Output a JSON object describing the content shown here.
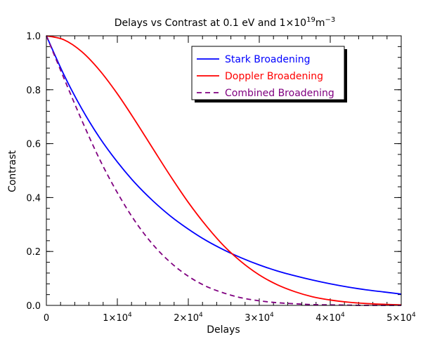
{
  "chart_data": {
    "type": "line",
    "title": {
      "prefix": "Delays vs Contrast at 0.1 eV and 1",
      "times": "×",
      "base": "10",
      "exp1": "19",
      "unit": "m",
      "exp2": "−3"
    },
    "xlabel": "Delays",
    "ylabel": "Contrast",
    "xlim": [
      0,
      50000
    ],
    "ylim": [
      0,
      1.0
    ],
    "y_ticks": [
      {
        "value": 0.0,
        "label": "0.0"
      },
      {
        "value": 0.2,
        "label": "0.2"
      },
      {
        "value": 0.4,
        "label": "0.4"
      },
      {
        "value": 0.6,
        "label": "0.6"
      },
      {
        "value": 0.8,
        "label": "0.8"
      },
      {
        "value": 1.0,
        "label": "1.0"
      }
    ],
    "x_ticks": [
      {
        "value": 0,
        "mant": "0",
        "base": "",
        "exp": ""
      },
      {
        "value": 10000,
        "mant": "1×",
        "base": "10",
        "exp": "4"
      },
      {
        "value": 20000,
        "mant": "2×",
        "base": "10",
        "exp": "4"
      },
      {
        "value": 30000,
        "mant": "3×",
        "base": "10",
        "exp": "4"
      },
      {
        "value": 40000,
        "mant": "4×",
        "base": "10",
        "exp": "4"
      },
      {
        "value": 50000,
        "mant": "5×",
        "base": "10",
        "exp": "4"
      }
    ],
    "x_minor_step": 2000,
    "y_minor_step": 0.04,
    "grid": false,
    "legend_position": "top-right",
    "x": [
      0,
      2500,
      5000,
      7500,
      10000,
      12500,
      15000,
      17500,
      20000,
      22500,
      25000,
      27500,
      30000,
      32500,
      35000,
      37500,
      40000,
      42500,
      45000,
      47500,
      50000
    ],
    "series": [
      {
        "name": "Stark Broadening",
        "color": "#0000ff",
        "dash": "",
        "values": [
          1.0,
          0.854,
          0.729,
          0.622,
          0.532,
          0.454,
          0.388,
          0.331,
          0.283,
          0.241,
          0.206,
          0.176,
          0.15,
          0.128,
          0.11,
          0.094,
          0.08,
          0.068,
          0.058,
          0.05,
          0.042
        ]
      },
      {
        "name": "Doppler Broadening",
        "color": "#ff0000",
        "dash": "",
        "values": [
          1.0,
          0.985,
          0.941,
          0.872,
          0.785,
          0.686,
          0.582,
          0.479,
          0.382,
          0.296,
          0.221,
          0.161,
          0.113,
          0.077,
          0.051,
          0.032,
          0.02,
          0.012,
          0.007,
          0.004,
          0.002
        ]
      },
      {
        "name": "Combined Broadening",
        "color": "#800080",
        "dash": "7,5",
        "values": [
          1.0,
          0.841,
          0.686,
          0.542,
          0.418,
          0.312,
          0.226,
          0.159,
          0.108,
          0.071,
          0.046,
          0.028,
          0.017,
          0.01,
          0.006,
          0.003,
          0.002,
          0.001,
          0.0,
          0.0,
          0.0
        ]
      }
    ]
  }
}
